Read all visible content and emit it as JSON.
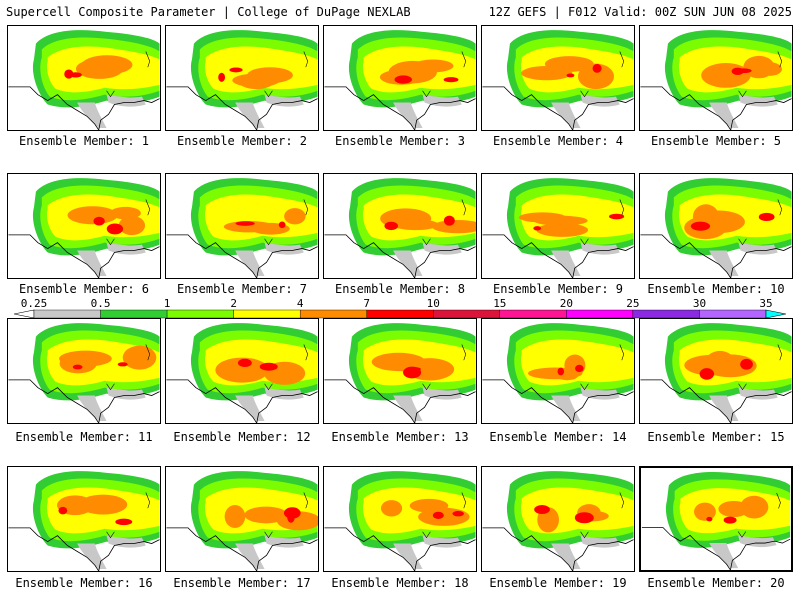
{
  "header": {
    "left": "Supercell Composite Parameter | College of DuPage NEXLAB",
    "right": "12Z GEFS | F012 Valid: 00Z SUN JUN 08 2025"
  },
  "colorbar": {
    "labels": [
      "0.25",
      "0.5",
      "1",
      "2",
      "4",
      "7",
      "10",
      "15",
      "20",
      "25",
      "30",
      "35"
    ],
    "colors": [
      "#ffffff",
      "#c8c8c8",
      "#32cd32",
      "#7cfc00",
      "#ffff00",
      "#ff8c00",
      "#ff0000",
      "#dc143c",
      "#ff1493",
      "#ff00ff",
      "#8a2be2",
      "#b266ff",
      "#00ffff"
    ]
  },
  "panels": [
    {
      "caption": "Ensemble Member: 1"
    },
    {
      "caption": "Ensemble Member: 2"
    },
    {
      "caption": "Ensemble Member: 3"
    },
    {
      "caption": "Ensemble Member: 4"
    },
    {
      "caption": "Ensemble Member: 5"
    },
    {
      "caption": "Ensemble Member: 6"
    },
    {
      "caption": "Ensemble Member: 7"
    },
    {
      "caption": "Ensemble Member: 8"
    },
    {
      "caption": "Ensemble Member: 9"
    },
    {
      "caption": "Ensemble Member: 10"
    },
    {
      "caption": "Ensemble Member: 11"
    },
    {
      "caption": "Ensemble Member: 12"
    },
    {
      "caption": "Ensemble Member: 13"
    },
    {
      "caption": "Ensemble Member: 14"
    },
    {
      "caption": "Ensemble Member: 15"
    },
    {
      "caption": "Ensemble Member: 16"
    },
    {
      "caption": "Ensemble Member: 17"
    },
    {
      "caption": "Ensemble Member: 18"
    },
    {
      "caption": "Ensemble Member: 19"
    },
    {
      "caption": "Ensemble Member: 20",
      "selected": true
    }
  ]
}
